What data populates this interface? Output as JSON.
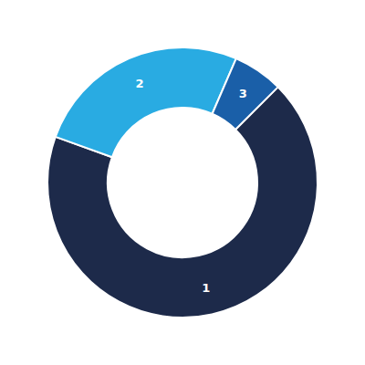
{
  "chart_data": {
    "type": "donut",
    "categories": [
      "1",
      "2",
      "3"
    ],
    "values": [
      68,
      26,
      6
    ],
    "colors": [
      "#1d2a4a",
      "#29abe2",
      "#1a5fa8"
    ]
  }
}
